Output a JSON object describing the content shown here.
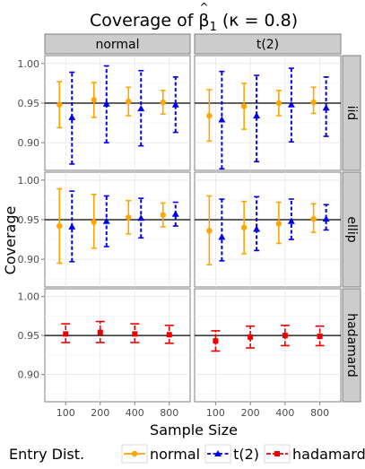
{
  "chart_data": {
    "type": "scatter",
    "title": {
      "prefix": "Coverage of ",
      "beta": "β",
      "hat": "^",
      "subscript": "1",
      "suffix": " (κ = 0.8)"
    },
    "xlabel": "Sample Size",
    "ylabel": "Coverage",
    "categories": [
      "100",
      "200",
      "400",
      "800"
    ],
    "ylim": [
      0.865,
      1.01
    ],
    "yticks": [
      0.9,
      0.95,
      1.0
    ],
    "ytick_labels": [
      "0.90",
      "0.95",
      "1.00"
    ],
    "reference_line": 0.95,
    "columns": [
      "normal",
      "t(2)"
    ],
    "rows": [
      "iid",
      "ellip",
      "hadamard"
    ],
    "legend": {
      "title": "Entry Dist.",
      "position": "bottom",
      "entries": [
        "normal",
        "t(2)",
        "hadamard"
      ]
    },
    "colors": {
      "normal": "#FFA500",
      "t(2)": "#0000EE",
      "hadamard": "#EE0000"
    },
    "series": [
      {
        "name": "normal",
        "row": "iid",
        "column": "normal",
        "y": [
          0.948,
          0.954,
          0.952,
          0.951
        ],
        "lower": [
          0.919,
          0.932,
          0.934,
          0.936
        ],
        "upper": [
          0.977,
          0.976,
          0.97,
          0.966
        ]
      },
      {
        "name": "t(2)",
        "row": "iid",
        "column": "normal",
        "y": [
          0.932,
          0.949,
          0.943,
          0.948
        ],
        "lower": [
          0.873,
          0.9,
          0.896,
          0.913
        ],
        "upper": [
          0.989,
          0.997,
          0.991,
          0.983
        ]
      },
      {
        "name": "normal",
        "row": "iid",
        "column": "t(2)",
        "y": [
          0.934,
          0.946,
          0.95,
          0.951
        ],
        "lower": [
          0.902,
          0.917,
          0.934,
          0.937
        ],
        "upper": [
          0.967,
          0.975,
          0.966,
          0.97
        ]
      },
      {
        "name": "t(2)",
        "row": "iid",
        "column": "t(2)",
        "y": [
          0.929,
          0.934,
          0.948,
          0.944
        ],
        "lower": [
          0.867,
          0.876,
          0.901,
          0.908
        ],
        "upper": [
          0.99,
          0.985,
          0.994,
          0.983
        ]
      },
      {
        "name": "normal",
        "row": "ellip",
        "column": "normal",
        "y": [
          0.942,
          0.947,
          0.953,
          0.956
        ],
        "lower": [
          0.895,
          0.914,
          0.932,
          0.941
        ],
        "upper": [
          0.989,
          0.982,
          0.974,
          0.971
        ]
      },
      {
        "name": "t(2)",
        "row": "ellip",
        "column": "normal",
        "y": [
          0.941,
          0.948,
          0.952,
          0.957
        ],
        "lower": [
          0.897,
          0.916,
          0.927,
          0.942
        ],
        "upper": [
          0.986,
          0.98,
          0.977,
          0.972
        ]
      },
      {
        "name": "normal",
        "row": "ellip",
        "column": "t(2)",
        "y": [
          0.936,
          0.94,
          0.945,
          0.951
        ],
        "lower": [
          0.893,
          0.907,
          0.92,
          0.934
        ],
        "upper": [
          0.98,
          0.973,
          0.972,
          0.97
        ]
      },
      {
        "name": "t(2)",
        "row": "ellip",
        "column": "t(2)",
        "y": [
          0.928,
          0.938,
          0.948,
          0.951
        ],
        "lower": [
          0.898,
          0.911,
          0.925,
          0.937
        ],
        "upper": [
          0.976,
          0.979,
          0.976,
          0.969
        ]
      },
      {
        "name": "hadamard",
        "row": "hadamard",
        "column": "normal",
        "y": [
          0.952,
          0.954,
          0.952,
          0.951
        ],
        "lower": [
          0.941,
          0.941,
          0.941,
          0.94
        ],
        "upper": [
          0.965,
          0.968,
          0.965,
          0.963
        ]
      },
      {
        "name": "hadamard",
        "row": "hadamard",
        "column": "t(2)",
        "y": [
          0.943,
          0.948,
          0.95,
          0.949
        ],
        "lower": [
          0.93,
          0.934,
          0.937,
          0.937
        ],
        "upper": [
          0.956,
          0.962,
          0.963,
          0.962
        ]
      }
    ]
  }
}
